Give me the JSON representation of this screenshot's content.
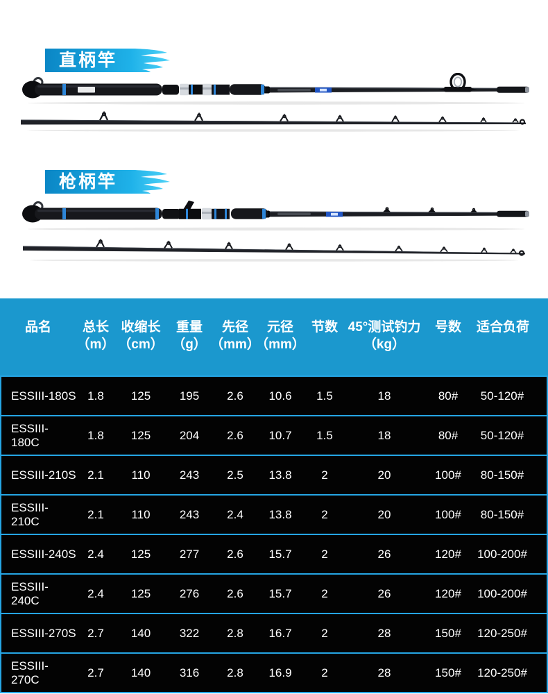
{
  "colors": {
    "banner_gradient_start": "#0A86C5",
    "banner_gradient_end": "#1FB2E9",
    "table_header_bg": "#1B98CE",
    "table_row_bg": "#030303",
    "table_divider": "#25A5E4",
    "table_text": "#FFFFFF",
    "rod_accent_blue": "#2E86D8"
  },
  "sections": [
    {
      "banner_label": "直柄竿"
    },
    {
      "banner_label": "枪柄竿"
    }
  ],
  "icons": [
    {
      "name": "brush-stroke-icon",
      "shape": "paint-brush-swipe"
    }
  ],
  "table": {
    "columns": [
      {
        "name": "product-name",
        "label": "品名",
        "unit": ""
      },
      {
        "name": "total-length",
        "label": "总长",
        "unit": "（m）"
      },
      {
        "name": "closed-length",
        "label": "收缩长",
        "unit": "（cm）"
      },
      {
        "name": "weight",
        "label": "重量",
        "unit": "（g）"
      },
      {
        "name": "tip-diameter",
        "label": "先径",
        "unit": "（mm）"
      },
      {
        "name": "butt-diameter",
        "label": "元径",
        "unit": "（mm）"
      },
      {
        "name": "sections",
        "label": "节数",
        "unit": ""
      },
      {
        "name": "test-drag",
        "label": "45°测试钓力",
        "unit": "（kg）"
      },
      {
        "name": "size-number",
        "label": "号数",
        "unit": ""
      },
      {
        "name": "suitable-load",
        "label": "适合负荷",
        "unit": ""
      }
    ],
    "rows": [
      [
        "ESSIII-180S",
        "1.8",
        "125",
        "195",
        "2.6",
        "10.6",
        "1.5",
        "18",
        "80#",
        "50-120#"
      ],
      [
        "ESSIII-180C",
        "1.8",
        "125",
        "204",
        "2.6",
        "10.7",
        "1.5",
        "18",
        "80#",
        "50-120#"
      ],
      [
        "ESSIII-210S",
        "2.1",
        "110",
        "243",
        "2.5",
        "13.8",
        "2",
        "20",
        "100#",
        "80-150#"
      ],
      [
        "ESSIII-210C",
        "2.1",
        "110",
        "243",
        "2.4",
        "13.8",
        "2",
        "20",
        "100#",
        "80-150#"
      ],
      [
        "ESSIII-240S",
        "2.4",
        "125",
        "277",
        "2.6",
        "15.7",
        "2",
        "26",
        "120#",
        "100-200#"
      ],
      [
        "ESSIII-240C",
        "2.4",
        "125",
        "276",
        "2.6",
        "15.7",
        "2",
        "26",
        "120#",
        "100-200#"
      ],
      [
        "ESSIII-270S",
        "2.7",
        "140",
        "322",
        "2.8",
        "16.7",
        "2",
        "28",
        "150#",
        "120-250#"
      ],
      [
        "ESSIII-270C",
        "2.7",
        "140",
        "316",
        "2.8",
        "16.9",
        "2",
        "28",
        "150#",
        "120-250#"
      ]
    ]
  }
}
